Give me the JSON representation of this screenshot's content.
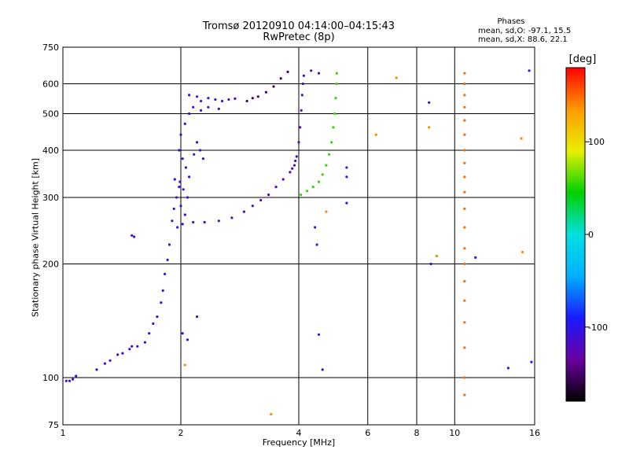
{
  "header": {
    "title_line1": "Tromsø 20120910 04:14:00–04:15:43",
    "title_line2": "RwPretec (8p)"
  },
  "phase_stats": {
    "title": "Phases",
    "o_line": "mean, sd,O: -97.1, 15.5",
    "x_line": "mean, sd,X: 88.6, 22.1"
  },
  "colorbar": {
    "unit": "[deg]",
    "ticks": [
      {
        "value": 100,
        "label": "100"
      },
      {
        "value": 0,
        "label": "0"
      },
      {
        "value": -100,
        "label": "-100"
      }
    ],
    "range": [
      -180,
      180
    ],
    "colors": [
      "#000000",
      "#6a00a0",
      "#1a1aff",
      "#00b0ff",
      "#00e0e0",
      "#00d000",
      "#e8f000",
      "#ff9a00",
      "#ff0000"
    ]
  },
  "chart_data": {
    "type": "scatter",
    "title": "Tromsø 20120910 04:14:00–04:15:43",
    "subtitle": "RwPretec (8p)",
    "xlabel": "Frequency [MHz]",
    "ylabel": "Stationary phase Virtual Height [km]",
    "xscale": "log",
    "yscale": "log",
    "xlim": [
      1,
      16
    ],
    "ylim": [
      75,
      750
    ],
    "xticks": [
      1,
      2,
      4,
      6,
      8,
      10,
      16
    ],
    "yticks": [
      75,
      100,
      200,
      300,
      400,
      500,
      600,
      750
    ],
    "grid": true,
    "color_encoding": "phase [deg]",
    "series": [
      {
        "phase": -110,
        "points": [
          [
            1.02,
            98
          ],
          [
            1.04,
            98
          ],
          [
            1.06,
            99
          ],
          [
            1.08,
            101
          ],
          [
            1.22,
            105
          ],
          [
            1.28,
            109
          ],
          [
            1.32,
            111
          ],
          [
            1.38,
            115
          ],
          [
            1.42,
            116
          ],
          [
            1.48,
            119
          ],
          [
            1.5,
            121
          ],
          [
            1.55,
            121
          ],
          [
            1.62,
            124
          ],
          [
            1.66,
            131
          ],
          [
            1.7,
            139
          ],
          [
            1.74,
            145
          ],
          [
            1.78,
            158
          ],
          [
            1.8,
            170
          ],
          [
            1.82,
            188
          ],
          [
            1.85,
            205
          ],
          [
            1.87,
            225
          ],
          [
            1.5,
            238
          ],
          [
            1.52,
            236
          ],
          [
            2.02,
            131
          ],
          [
            2.08,
            126
          ],
          [
            2.2,
            145
          ]
        ]
      },
      {
        "phase": -110,
        "points": [
          [
            1.9,
            260
          ],
          [
            1.92,
            280
          ],
          [
            1.95,
            300
          ],
          [
            1.98,
            320
          ],
          [
            2.0,
            285
          ],
          [
            2.02,
            255
          ],
          [
            2.05,
            270
          ],
          [
            2.08,
            300
          ],
          [
            1.93,
            335
          ],
          [
            1.96,
            250
          ],
          [
            1.98,
            400
          ],
          [
            2.0,
            440
          ],
          [
            2.02,
            380
          ],
          [
            2.06,
            360
          ],
          [
            2.1,
            340
          ],
          [
            2.16,
            390
          ],
          [
            2.2,
            420
          ],
          [
            2.24,
            400
          ],
          [
            2.28,
            380
          ],
          [
            2.05,
            470
          ],
          [
            2.1,
            500
          ],
          [
            2.15,
            520
          ],
          [
            2.25,
            540
          ],
          [
            2.35,
            550
          ],
          [
            2.45,
            545
          ],
          [
            2.55,
            540
          ],
          [
            2.65,
            545
          ],
          [
            2.75,
            548
          ],
          [
            2.25,
            510
          ],
          [
            2.35,
            520
          ],
          [
            2.5,
            515
          ],
          [
            2.1,
            560
          ],
          [
            2.2,
            555
          ],
          [
            1.99,
            330
          ],
          [
            2.03,
            315
          ]
        ]
      },
      {
        "phase": -120,
        "points": [
          [
            2.15,
            258
          ],
          [
            2.3,
            258
          ],
          [
            2.5,
            260
          ],
          [
            2.7,
            265
          ],
          [
            2.9,
            275
          ],
          [
            3.05,
            285
          ],
          [
            3.2,
            295
          ],
          [
            3.35,
            305
          ],
          [
            3.5,
            320
          ],
          [
            3.65,
            335
          ],
          [
            3.8,
            350
          ],
          [
            3.9,
            365
          ],
          [
            3.95,
            385
          ],
          [
            4.0,
            420
          ],
          [
            4.03,
            460
          ],
          [
            4.06,
            510
          ],
          [
            4.08,
            560
          ],
          [
            4.1,
            600
          ],
          [
            4.12,
            630
          ],
          [
            4.3,
            650
          ],
          [
            4.5,
            640
          ],
          [
            3.92,
            375
          ],
          [
            3.85,
            358
          ]
        ]
      },
      {
        "phase": -150,
        "points": [
          [
            2.95,
            540
          ],
          [
            3.05,
            550
          ],
          [
            3.15,
            555
          ],
          [
            3.3,
            570
          ],
          [
            3.45,
            590
          ],
          [
            3.6,
            620
          ],
          [
            3.75,
            645
          ]
        ]
      },
      {
        "phase": 55,
        "points": [
          [
            4.05,
            305
          ],
          [
            4.2,
            312
          ],
          [
            4.35,
            320
          ],
          [
            4.5,
            330
          ],
          [
            4.6,
            345
          ],
          [
            4.7,
            365
          ],
          [
            4.78,
            390
          ],
          [
            4.85,
            420
          ],
          [
            4.9,
            460
          ],
          [
            4.94,
            500
          ],
          [
            4.97,
            550
          ],
          [
            4.99,
            600
          ],
          [
            5.0,
            640
          ]
        ]
      },
      {
        "phase": 150,
        "points": [
          [
            10.6,
            90
          ],
          [
            10.6,
            100
          ],
          [
            10.6,
            120
          ],
          [
            10.6,
            140
          ],
          [
            10.6,
            160
          ],
          [
            10.6,
            180
          ],
          [
            10.6,
            200
          ],
          [
            10.6,
            220
          ],
          [
            10.6,
            250
          ],
          [
            10.6,
            280
          ],
          [
            10.6,
            310
          ],
          [
            10.6,
            340
          ],
          [
            10.6,
            370
          ],
          [
            10.6,
            400
          ],
          [
            10.6,
            440
          ],
          [
            10.6,
            480
          ],
          [
            10.6,
            520
          ],
          [
            10.6,
            560
          ],
          [
            10.6,
            600
          ],
          [
            10.6,
            640
          ]
        ]
      },
      {
        "phase": 140,
        "points": [
          [
            6.3,
            440
          ],
          [
            7.1,
            622
          ],
          [
            8.6,
            460
          ],
          [
            9.0,
            210
          ],
          [
            14.8,
            430
          ],
          [
            14.9,
            215
          ],
          [
            2.05,
            108
          ],
          [
            3.4,
            80
          ],
          [
            4.7,
            275
          ]
        ]
      },
      {
        "phase": -100,
        "points": [
          [
            4.4,
            250
          ],
          [
            4.45,
            225
          ],
          [
            4.5,
            130
          ],
          [
            4.6,
            105
          ],
          [
            5.3,
            360
          ],
          [
            5.3,
            340
          ],
          [
            5.3,
            290
          ],
          [
            8.6,
            535
          ],
          [
            8.7,
            200
          ],
          [
            11.3,
            208
          ],
          [
            13.7,
            106
          ],
          [
            15.5,
            650
          ],
          [
            15.7,
            110
          ]
        ]
      }
    ]
  }
}
